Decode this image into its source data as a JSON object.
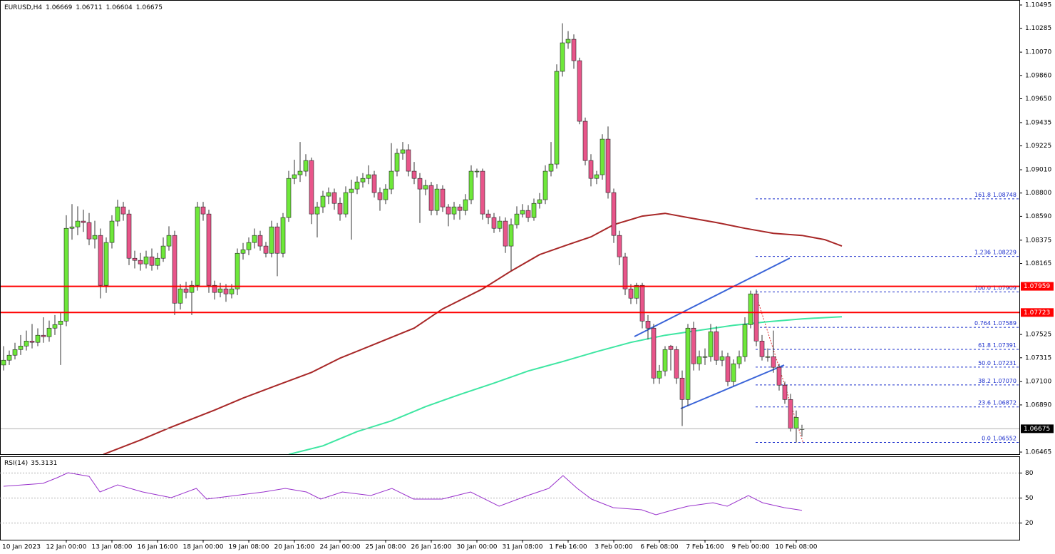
{
  "chart_data": {
    "type": "candlestick",
    "symbol": "EURUSD,H4",
    "ylim": [
      1.06446,
      1.1054
    ],
    "yticks": [
      1.10495,
      1.10285,
      {
        "value": 1.1007,
        "label": "1.10070"
      },
      {
        "value": 1.0986,
        "label": "1.09860"
      },
      {
        "value": 1.0965,
        "label": "1.09650"
      },
      1.09435,
      1.09225,
      {
        "value": 1.0901,
        "label": "1.09010"
      },
      {
        "value": 1.088,
        "label": "1.08800"
      },
      {
        "value": 1.0859,
        "label": "1.08590"
      },
      1.08375,
      1.08165,
      1.07525,
      1.07315,
      {
        "value": 1.071,
        "label": "1.07100"
      },
      {
        "value": 1.0689,
        "label": "1.06890"
      },
      1.06465
    ],
    "candles": [
      [
        1.0725,
        1.0742,
        1.072,
        1.07293
      ],
      [
        1.07293,
        1.0738,
        1.0725,
        1.07338
      ],
      [
        1.07338,
        1.0745,
        1.073,
        1.07389
      ],
      [
        1.07389,
        1.0752,
        1.0734,
        1.07421
      ],
      [
        1.07421,
        1.0756,
        1.0738,
        1.07466
      ],
      [
        1.07466,
        1.0762,
        1.074,
        1.07454
      ],
      [
        1.07454,
        1.0758,
        1.0742,
        1.07518
      ],
      [
        1.07518,
        1.0768,
        1.0745,
        1.07505
      ],
      [
        1.07505,
        1.0765,
        1.0746,
        1.07582
      ],
      [
        1.07582,
        1.077,
        1.0752,
        1.07614
      ],
      [
        1.07614,
        1.0772,
        1.0725,
        1.07646
      ],
      [
        1.07646,
        1.086,
        1.076,
        1.08482
      ],
      [
        1.08482,
        1.087,
        1.0838,
        1.08495
      ],
      [
        1.08495,
        1.0868,
        1.0842,
        1.08547
      ],
      [
        1.08547,
        1.0865,
        1.0845,
        1.08534
      ],
      [
        1.08534,
        1.0862,
        1.0833,
        1.08386
      ],
      [
        1.08386,
        1.0855,
        1.083,
        1.08418
      ],
      [
        1.08418,
        1.0848,
        1.0785,
        1.07968
      ],
      [
        1.07968,
        1.084,
        1.079,
        1.08354
      ],
      [
        1.08354,
        1.086,
        1.083,
        1.08547
      ],
      [
        1.08547,
        1.0874,
        1.085,
        1.08675
      ],
      [
        1.08675,
        1.0872,
        1.0855,
        1.08611
      ],
      [
        1.08611,
        1.0865,
        1.0815,
        1.08212
      ],
      [
        1.08212,
        1.0828,
        1.0812,
        1.08193
      ],
      [
        1.08193,
        1.0826,
        1.081,
        1.08161
      ],
      [
        1.08161,
        1.0828,
        1.0812,
        1.08225
      ],
      [
        1.08225,
        1.083,
        1.081,
        1.08148
      ],
      [
        1.08148,
        1.0826,
        1.0811,
        1.08212
      ],
      [
        1.08212,
        1.084,
        1.0818,
        1.08322
      ],
      [
        1.08322,
        1.085,
        1.0828,
        1.08418
      ],
      [
        1.08418,
        1.0846,
        1.077,
        1.07807
      ],
      [
        1.07807,
        1.0798,
        1.0775,
        1.07936
      ],
      [
        1.07936,
        1.08,
        1.0785,
        1.07904
      ],
      [
        1.07904,
        1.0801,
        1.077,
        1.07968
      ],
      [
        1.07968,
        1.0872,
        1.0792,
        1.08675
      ],
      [
        1.08675,
        1.0872,
        1.0855,
        1.08611
      ],
      [
        1.08611,
        1.0865,
        1.079,
        1.07968
      ],
      [
        1.07968,
        1.0801,
        1.0784,
        1.07904
      ],
      [
        1.07904,
        1.0799,
        1.0786,
        1.07936
      ],
      [
        1.07936,
        1.0798,
        1.0782,
        1.07891
      ],
      [
        1.07891,
        1.0798,
        1.0785,
        1.07936
      ],
      [
        1.07936,
        1.083,
        1.0788,
        1.08257
      ],
      [
        1.08257,
        1.0835,
        1.082,
        1.08289
      ],
      [
        1.08289,
        1.084,
        1.0824,
        1.08354
      ],
      [
        1.08354,
        1.0848,
        1.083,
        1.08418
      ],
      [
        1.08418,
        1.0846,
        1.0828,
        1.08322
      ],
      [
        1.08322,
        1.0836,
        1.0822,
        1.08257
      ],
      [
        1.08257,
        1.0855,
        1.0822,
        1.08495
      ],
      [
        1.08495,
        1.0853,
        1.0805,
        1.08257
      ],
      [
        1.08257,
        1.0862,
        1.0822,
        1.08579
      ],
      [
        1.08579,
        1.09,
        1.0854,
        1.08932
      ],
      [
        1.08932,
        1.091,
        1.0888,
        1.08965
      ],
      [
        1.08965,
        1.0926,
        1.089,
        1.08997
      ],
      [
        1.08997,
        1.0915,
        1.0895,
        1.09093
      ],
      [
        1.09093,
        1.0912,
        1.0852,
        1.08611
      ],
      [
        1.08611,
        1.0872,
        1.084,
        1.08675
      ],
      [
        1.08675,
        1.0882,
        1.0862,
        1.08772
      ],
      [
        1.08772,
        1.0885,
        1.087,
        1.08804
      ],
      [
        1.08804,
        1.0884,
        1.0865,
        1.08707
      ],
      [
        1.08707,
        1.0876,
        1.0855,
        1.08611
      ],
      [
        1.08611,
        1.0886,
        1.0858,
        1.08804
      ],
      [
        1.08804,
        1.0892,
        1.0838,
        1.08836
      ],
      [
        1.08836,
        1.0895,
        1.0879,
        1.089
      ],
      [
        1.089,
        1.0898,
        1.0885,
        1.08932
      ],
      [
        1.08932,
        1.0905,
        1.0888,
        1.08965
      ],
      [
        1.08965,
        1.09,
        1.0876,
        1.08804
      ],
      [
        1.08804,
        1.0885,
        1.0864,
        1.0874
      ],
      [
        1.0874,
        1.0888,
        1.087,
        1.08836
      ],
      [
        1.08836,
        1.0925,
        1.0879,
        1.08997
      ],
      [
        1.08997,
        1.092,
        1.0895,
        1.09158
      ],
      [
        1.09158,
        1.0926,
        1.091,
        1.0919
      ],
      [
        1.0919,
        1.0924,
        1.0895,
        1.08997
      ],
      [
        1.08997,
        1.0908,
        1.0888,
        1.08932
      ],
      [
        1.08932,
        1.0898,
        1.0853,
        1.08836
      ],
      [
        1.08836,
        1.0892,
        1.0878,
        1.08868
      ],
      [
        1.08868,
        1.089,
        1.086,
        1.08643
      ],
      [
        1.08643,
        1.0888,
        1.086,
        1.08836
      ],
      [
        1.08836,
        1.0887,
        1.0863,
        1.08675
      ],
      [
        1.08675,
        1.087,
        1.085,
        1.08611
      ],
      [
        1.08611,
        1.0872,
        1.0856,
        1.08675
      ],
      [
        1.08675,
        1.087,
        1.0856,
        1.08643
      ],
      [
        1.08643,
        1.0879,
        1.086,
        1.0874
      ],
      [
        1.0874,
        1.0905,
        1.087,
        1.08997
      ],
      [
        1.08997,
        1.0902,
        1.0894,
        1.08997
      ],
      [
        1.08997,
        1.0902,
        1.0856,
        1.08611
      ],
      [
        1.08611,
        1.0865,
        1.0852,
        1.08579
      ],
      [
        1.08579,
        1.0862,
        1.0844,
        1.08482
      ],
      [
        1.08482,
        1.0859,
        1.0845,
        1.08547
      ],
      [
        1.08547,
        1.0858,
        1.0826,
        1.08322
      ],
      [
        1.08322,
        1.0857,
        1.081,
        1.08515
      ],
      [
        1.08515,
        1.0868,
        1.0848,
        1.08611
      ],
      [
        1.08611,
        1.087,
        1.0858,
        1.08643
      ],
      [
        1.08643,
        1.0869,
        1.0854,
        1.08579
      ],
      [
        1.08579,
        1.0875,
        1.0855,
        1.08707
      ],
      [
        1.08707,
        1.088,
        1.0866,
        1.0874
      ],
      [
        1.0874,
        1.0905,
        1.087,
        1.08997
      ],
      [
        1.08997,
        1.0926,
        1.0895,
        1.09061
      ],
      [
        1.09061,
        1.0996,
        1.0902,
        1.09897
      ],
      [
        1.09897,
        1.1033,
        1.0985,
        1.10154
      ],
      [
        1.10154,
        1.1026,
        1.101,
        1.10186
      ],
      [
        1.10186,
        1.1023,
        1.0992,
        1.09993
      ],
      [
        1.09993,
        1.1002,
        1.0942,
        1.09447
      ],
      [
        1.09447,
        1.0948,
        1.0905,
        1.09093
      ],
      [
        1.09093,
        1.0915,
        1.0886,
        1.08932
      ],
      [
        1.08932,
        1.09,
        1.0888,
        1.08965
      ],
      [
        1.08965,
        1.0933,
        1.0892,
        1.09286
      ],
      [
        1.09286,
        1.094,
        1.0875,
        1.08804
      ],
      [
        1.08804,
        1.0884,
        1.0835,
        1.08418
      ],
      [
        1.08418,
        1.0846,
        1.0815,
        1.08225
      ],
      [
        1.08225,
        1.0826,
        1.0788,
        1.07936
      ],
      [
        1.07936,
        1.0798,
        1.078,
        1.07852
      ],
      [
        1.07852,
        1.0799,
        1.078,
        1.07968
      ],
      [
        1.07968,
        1.0799,
        1.0758,
        1.07646
      ],
      [
        1.07646,
        1.077,
        1.0748,
        1.07582
      ],
      [
        1.07582,
        1.0762,
        1.0708,
        1.07132
      ],
      [
        1.07132,
        1.0725,
        1.0708,
        1.07196
      ],
      [
        1.07196,
        1.0742,
        1.0715,
        1.07389
      ],
      [
        1.0742,
        1.0743,
        1.072,
        1.07389
      ],
      [
        1.07389,
        1.0742,
        1.0708,
        1.07132
      ],
      [
        1.07132,
        1.072,
        1.067,
        1.06939
      ],
      [
        1.06939,
        1.0762,
        1.0688,
        1.07582
      ],
      [
        1.07582,
        1.0764,
        1.072,
        1.07261
      ],
      [
        1.07261,
        1.0738,
        1.072,
        1.07325
      ],
      [
        1.07325,
        1.074,
        1.0725,
        1.07325
      ],
      [
        1.07325,
        1.0762,
        1.0728,
        1.0755
      ],
      [
        1.0755,
        1.076,
        1.0725,
        1.07293
      ],
      [
        1.07293,
        1.0738,
        1.0724,
        1.07325
      ],
      [
        1.07325,
        1.0736,
        1.0706,
        1.071
      ],
      [
        1.071,
        1.073,
        1.0706,
        1.07261
      ],
      [
        1.07261,
        1.0738,
        1.0722,
        1.07325
      ],
      [
        1.07325,
        1.0768,
        1.0728,
        1.07614
      ],
      [
        1.07614,
        1.0792,
        1.0758,
        1.07891
      ],
      [
        1.07891,
        1.0793,
        1.0742,
        1.07466
      ],
      [
        1.07466,
        1.0752,
        1.0729,
        1.07325
      ],
      [
        1.07325,
        1.074,
        1.0728,
        1.07325
      ],
      [
        1.07325,
        1.0756,
        1.0718,
        1.07229
      ],
      [
        1.07229,
        1.0726,
        1.0702,
        1.07068
      ],
      [
        1.07068,
        1.071,
        1.069,
        1.06939
      ],
      [
        1.06939,
        1.0699,
        1.0665,
        1.06682
      ],
      [
        1.06682,
        1.0684,
        1.06552,
        1.06778
      ],
      [
        1.06669,
        1.06711,
        1.06604,
        1.06675
      ]
    ],
    "x_labels": [
      "10 Jan 2023",
      "12 Jan 00:00",
      "13 Jan 08:00",
      "16 Jan 16:00",
      "18 Jan 00:00",
      "19 Jan 08:00",
      "20 Jan 16:00",
      "24 Jan 00:00",
      "25 Jan 08:00",
      "26 Jan 16:00",
      "30 Jan 00:00",
      "31 Jan 08:00",
      "1 Feb 16:00",
      "3 Feb 00:00",
      "6 Feb 08:00",
      "7 Feb 16:00",
      "9 Feb 00:00",
      "10 Feb 08:00"
    ],
    "series": [
      {
        "color": "#a82828",
        "x": [
          17.5,
          24,
          29,
          37,
          42,
          48,
          54,
          59,
          64,
          72,
          77,
          84,
          89,
          94,
          99,
          103,
          107,
          112,
          116,
          120,
          125,
          130,
          135,
          140,
          144,
          147
        ],
        "values": [
          1.06444,
          1.06573,
          1.06682,
          1.06843,
          1.06952,
          1.07068,
          1.07183,
          1.07312,
          1.07415,
          1.07582,
          1.07756,
          1.07936,
          1.08097,
          1.08245,
          1.08335,
          1.08405,
          1.08515,
          1.08592,
          1.08617,
          1.08579,
          1.08534,
          1.08482,
          1.08437,
          1.08418,
          1.0838,
          1.08322
        ]
      },
      {
        "color": "#3ee6a2",
        "x": [
          50,
          56,
          62,
          68,
          74,
          80,
          86,
          92,
          98,
          104,
          110,
          116,
          122,
          128,
          134,
          140,
          147
        ],
        "values": [
          1.06444,
          1.06521,
          1.0665,
          1.06746,
          1.06875,
          1.06984,
          1.07087,
          1.07196,
          1.0728,
          1.0737,
          1.07454,
          1.07518,
          1.07563,
          1.07608,
          1.0764,
          1.07666,
          1.07685
        ]
      }
    ],
    "hlines": [
      {
        "value": 1.07959,
        "color": "#ff0000"
      },
      {
        "value": 1.07723,
        "color": "#ff0000"
      }
    ],
    "fib_levels": [
      {
        "ratio": "161.8",
        "value": 1.08748
      },
      {
        "ratio": "1.236",
        "value": 1.08229
      },
      {
        "ratio": "100.0",
        "value": 1.07909
      },
      {
        "ratio": "0.764",
        "value": 1.07589
      },
      {
        "ratio": "61.8",
        "value": 1.07391
      },
      {
        "ratio": "50.0",
        "value": 1.07231
      },
      {
        "ratio": "38.2",
        "value": 1.0707,
        "label": "1.07070"
      },
      {
        "ratio": "23.6",
        "value": 1.06872
      },
      {
        "ratio": "0.0",
        "value": 1.06552
      }
    ],
    "rsi": {
      "name": "RSI(14)",
      "color": "#9932cc",
      "ylim": [
        0,
        100
      ],
      "yticks": [
        20,
        50,
        80
      ],
      "x": [
        0,
        6.9,
        9.4,
        11.3,
        15,
        16.9,
        20,
        24.4,
        29.4,
        33.8,
        35.6,
        40.6,
        45.6,
        49.4,
        53.1,
        55.6,
        59.4,
        64.4,
        68.1,
        71.9,
        76.9,
        81.9,
        86.9,
        91.9,
        95.6,
        98.1,
        100.6,
        103.1,
        106.9,
        111.9,
        114.4,
        117.5,
        120,
        124.4,
        126.9,
        130.6,
        133.1,
        136.9,
        140
      ],
      "values": [
        64.1,
        67.5,
        74.4,
        80.3,
        76,
        57.3,
        65.8,
        57.3,
        50.4,
        61.5,
        48.7,
        53,
        57.3,
        61.5,
        57.3,
        48.7,
        57.3,
        53,
        61.5,
        48.7,
        48.7,
        57.3,
        40.2,
        53,
        61.5,
        76.9,
        61.5,
        48.7,
        38.5,
        35.9,
        29.9,
        35.9,
        40.2,
        44.4,
        40.2,
        53,
        44.4,
        38.5,
        35.3131
      ]
    }
  }
}
